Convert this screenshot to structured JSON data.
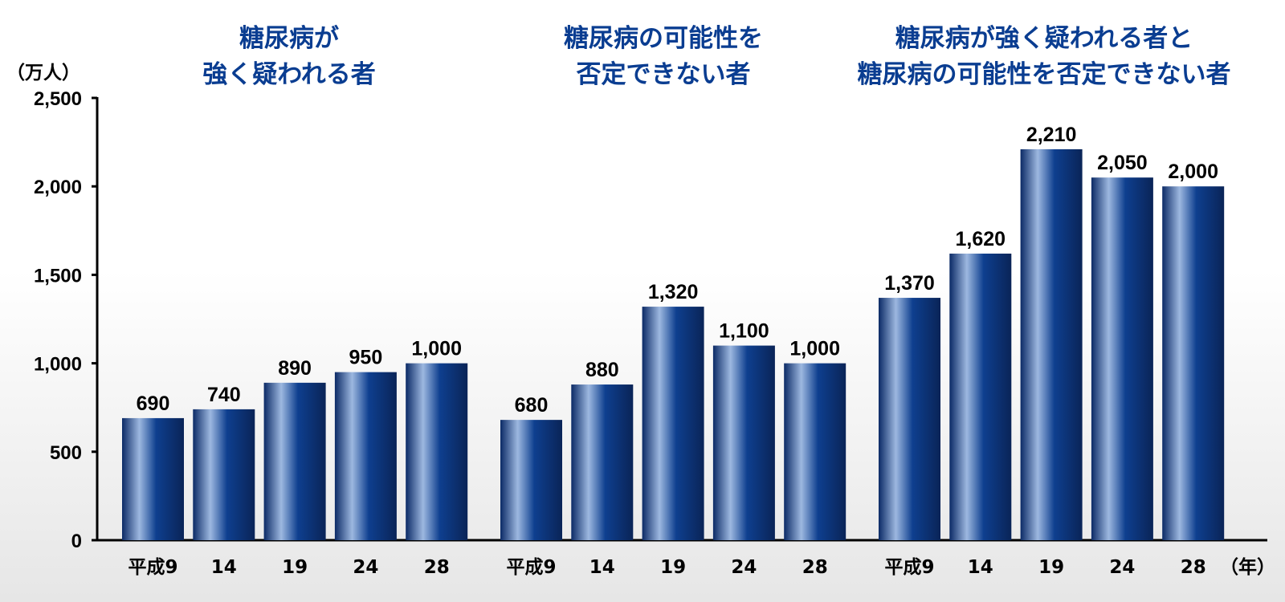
{
  "chart_data": {
    "type": "bar",
    "y_unit_label": "（万人）",
    "x_unit_label": "（年）",
    "ylim": [
      0,
      2500
    ],
    "yticks": [
      0,
      500,
      1000,
      1500,
      2000,
      2500
    ],
    "ytick_labels": [
      "0",
      "500",
      "1,000",
      "1,500",
      "2,000",
      "2,500"
    ],
    "grid": false,
    "colors": {
      "bar_dark": "#0b2a66",
      "bar_mid": "#0e3f8f",
      "bar_light": "#9db8e0",
      "title": "#0a3d91"
    },
    "groups": [
      {
        "title_lines": [
          "糖尿病が",
          "強く疑われる者"
        ],
        "categories": [
          "平成9",
          "14",
          "19",
          "24",
          "28"
        ],
        "values": [
          690,
          740,
          890,
          950,
          1000
        ],
        "value_labels": [
          "690",
          "740",
          "890",
          "950",
          "1,000"
        ]
      },
      {
        "title_lines": [
          "糖尿病の可能性を",
          "否定できない者"
        ],
        "categories": [
          "平成9",
          "14",
          "19",
          "24",
          "28"
        ],
        "values": [
          680,
          880,
          1320,
          1100,
          1000
        ],
        "value_labels": [
          "680",
          "880",
          "1,320",
          "1,100",
          "1,000"
        ]
      },
      {
        "title_lines": [
          "糖尿病が強く疑われる者と",
          "糖尿病の可能性を否定できない者"
        ],
        "categories": [
          "平成9",
          "14",
          "19",
          "24",
          "28"
        ],
        "values": [
          1370,
          1620,
          2210,
          2050,
          2000
        ],
        "value_labels": [
          "1,370",
          "1,620",
          "2,210",
          "2,050",
          "2,000"
        ]
      }
    ]
  }
}
